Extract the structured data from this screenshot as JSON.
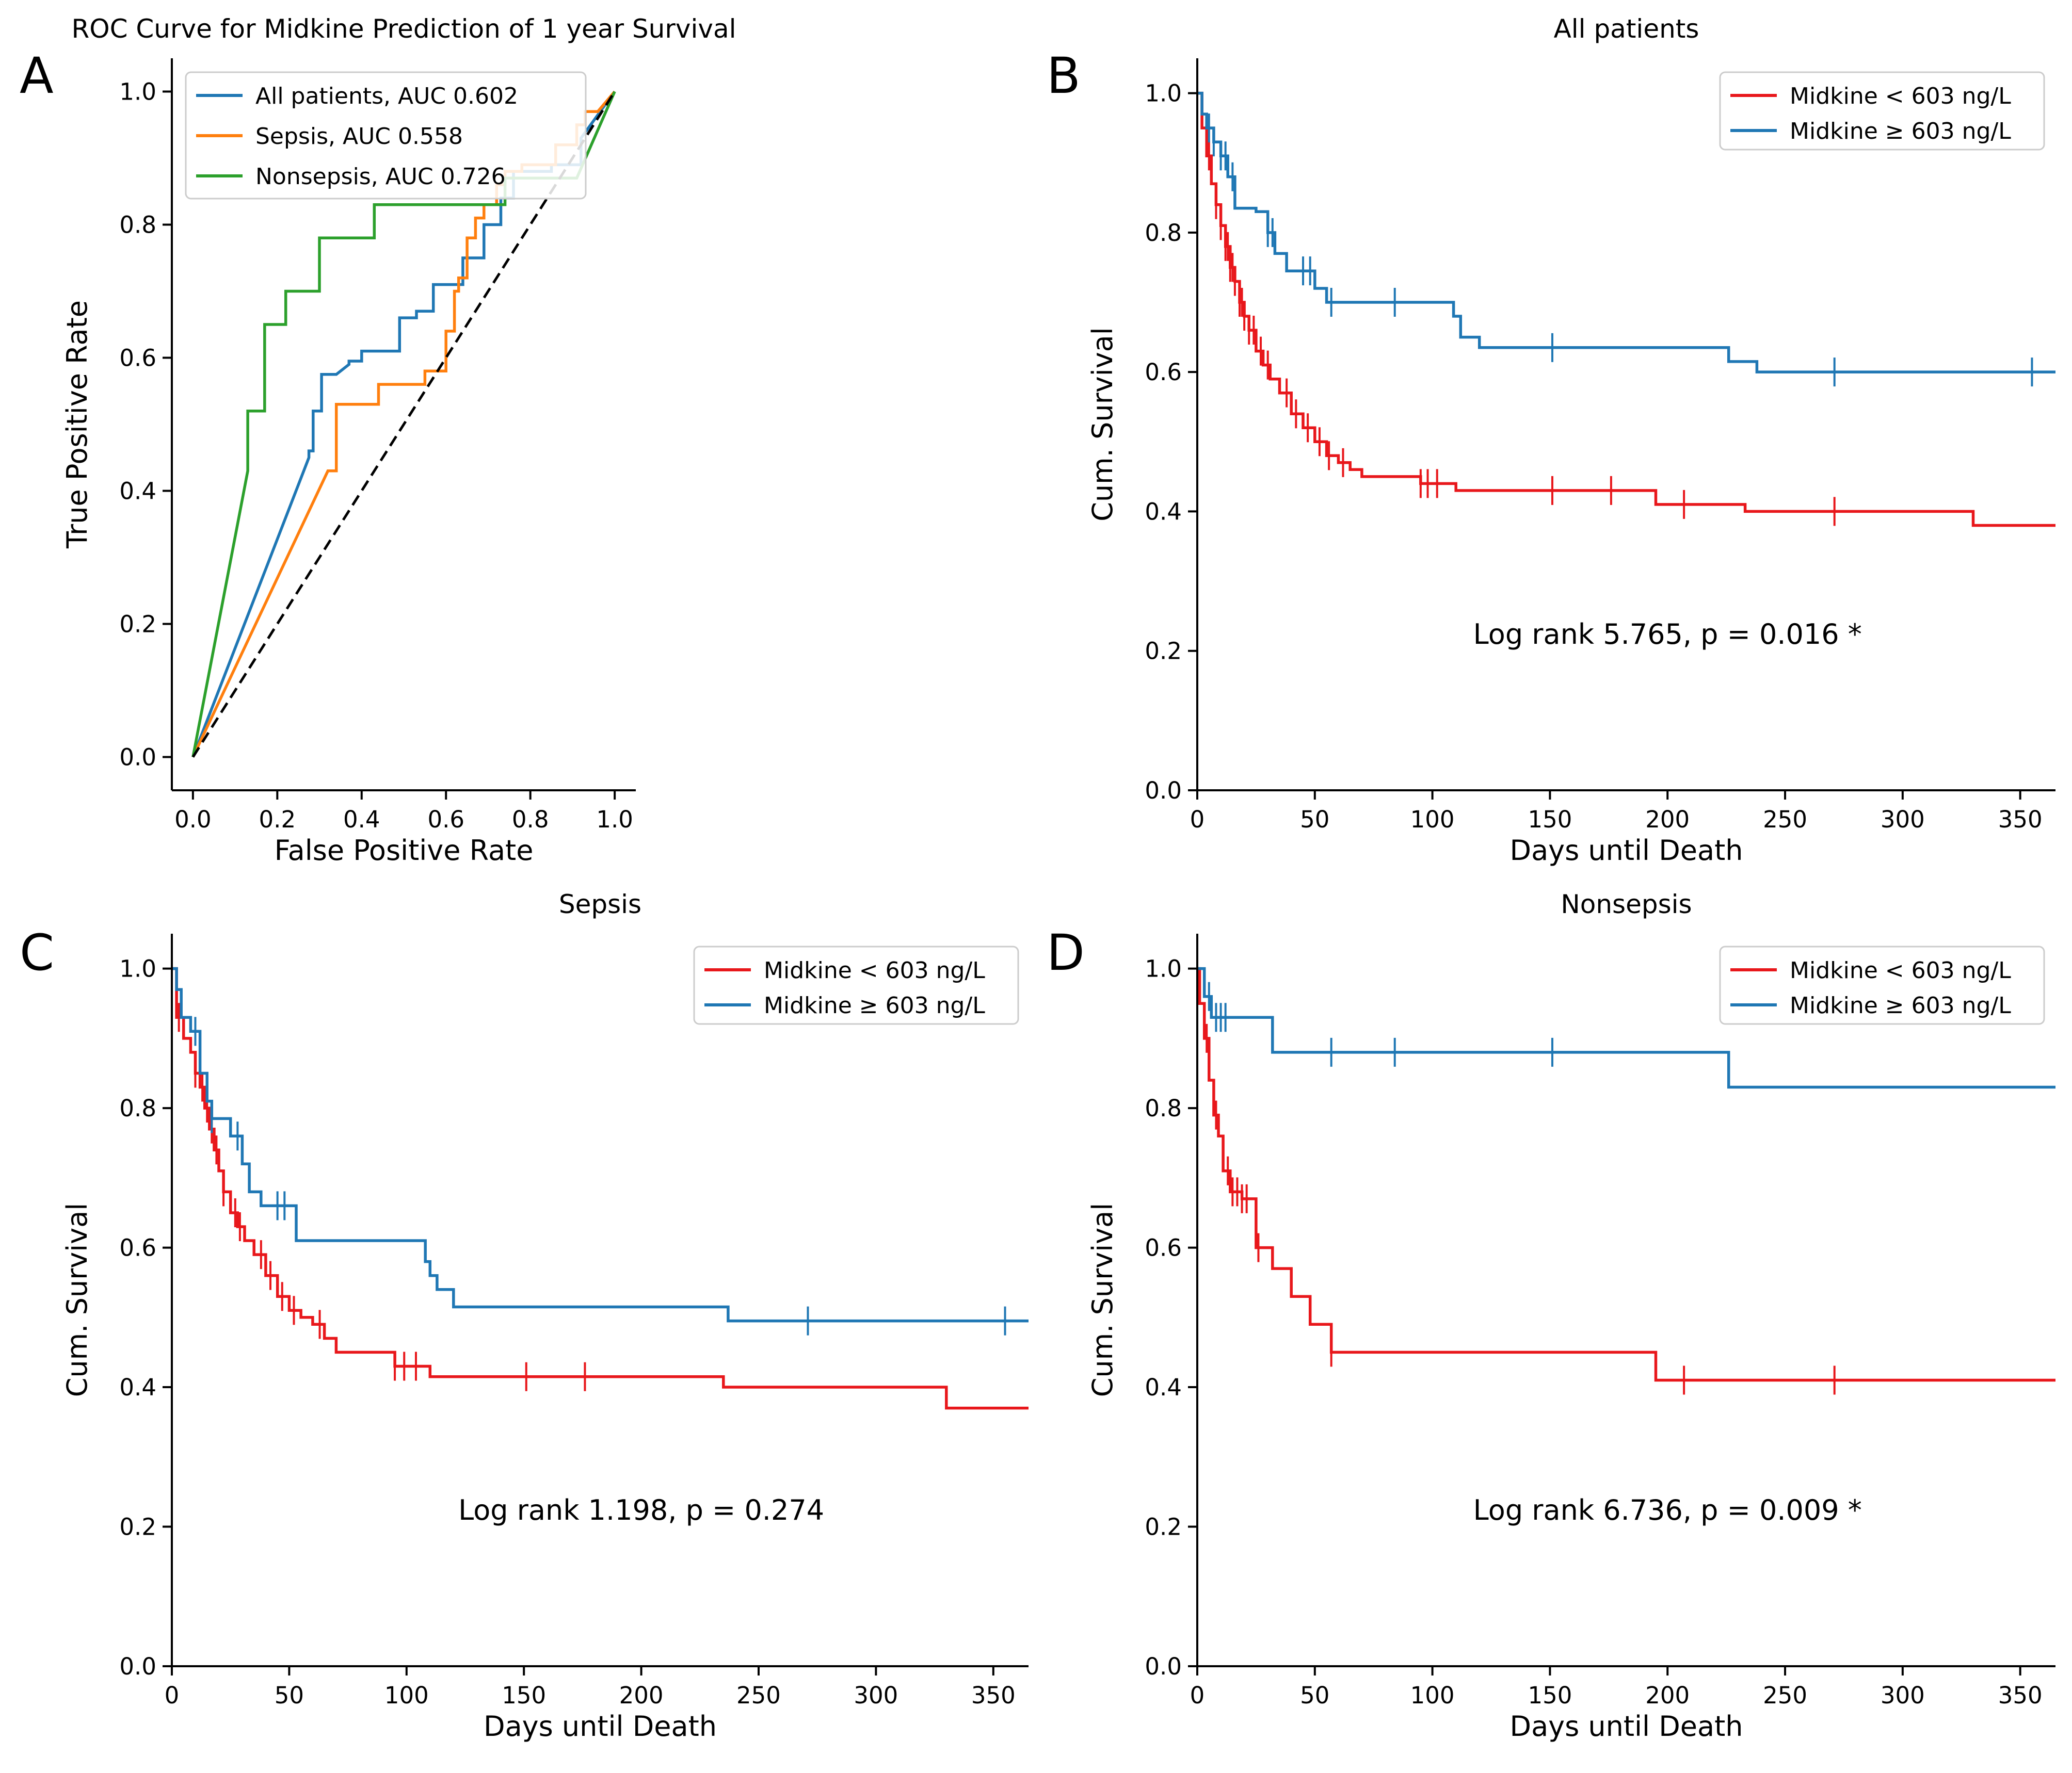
{
  "chart_data": [
    {
      "panel": "A",
      "type": "line",
      "title": "ROC Curve for Midkine Prediction of 1 year Survival",
      "xlabel": "False Positive Rate",
      "ylabel": "True Positive Rate",
      "xlim": [
        -0.05,
        1.05
      ],
      "ylim": [
        -0.05,
        1.05
      ],
      "xticks": [
        0.0,
        0.2,
        0.4,
        0.6,
        0.8,
        1.0
      ],
      "yticks": [
        0.0,
        0.2,
        0.4,
        0.6,
        0.8,
        1.0
      ],
      "tick_decimals": 1,
      "legend_position": "top-left",
      "series": [
        {
          "name": "All patients, AUC 0.602",
          "color": "#1f77b4",
          "x": [
            0,
            0.275,
            0.275,
            0.285,
            0.285,
            0.305,
            0.305,
            0.34,
            0.37,
            0.37,
            0.4,
            0.4,
            0.49,
            0.49,
            0.53,
            0.53,
            0.57,
            0.57,
            0.64,
            0.64,
            0.69,
            0.69,
            0.73,
            0.73,
            0.76,
            0.76,
            0.85,
            0.85,
            0.92,
            0.92,
            1.0
          ],
          "y": [
            0,
            0.45,
            0.46,
            0.46,
            0.52,
            0.52,
            0.575,
            0.575,
            0.59,
            0.595,
            0.595,
            0.61,
            0.61,
            0.66,
            0.66,
            0.67,
            0.67,
            0.71,
            0.71,
            0.75,
            0.75,
            0.8,
            0.8,
            0.84,
            0.84,
            0.88,
            0.88,
            0.89,
            0.89,
            0.93,
            1.0
          ]
        },
        {
          "name": "Sepsis, AUC 0.558",
          "color": "#ff7f0e",
          "x": [
            0,
            0.32,
            0.34,
            0.34,
            0.44,
            0.44,
            0.55,
            0.55,
            0.6,
            0.6,
            0.62,
            0.62,
            0.63,
            0.63,
            0.65,
            0.65,
            0.67,
            0.67,
            0.69,
            0.69,
            0.72,
            0.72,
            0.74,
            0.74,
            0.78,
            0.78,
            0.86,
            0.86,
            0.91,
            0.91,
            0.93,
            0.93,
            0.96,
            1.0
          ],
          "y": [
            0,
            0.43,
            0.43,
            0.53,
            0.53,
            0.56,
            0.56,
            0.58,
            0.58,
            0.64,
            0.64,
            0.7,
            0.7,
            0.72,
            0.72,
            0.78,
            0.78,
            0.81,
            0.81,
            0.83,
            0.83,
            0.86,
            0.86,
            0.88,
            0.88,
            0.89,
            0.89,
            0.92,
            0.92,
            0.95,
            0.95,
            0.97,
            0.97,
            1.0
          ]
        },
        {
          "name": "Nonsepsis, AUC 0.726",
          "color": "#2ca02c",
          "x": [
            0,
            0.13,
            0.13,
            0.17,
            0.17,
            0.22,
            0.22,
            0.3,
            0.3,
            0.43,
            0.43,
            0.74,
            0.74,
            0.91,
            1.0
          ],
          "y": [
            0,
            0.43,
            0.52,
            0.52,
            0.65,
            0.65,
            0.7,
            0.7,
            0.78,
            0.78,
            0.83,
            0.83,
            0.87,
            0.87,
            1.0
          ]
        },
        {
          "name": "chance",
          "color": "#000000",
          "dashed": true,
          "x": [
            0,
            1
          ],
          "y": [
            0,
            1
          ]
        }
      ]
    },
    {
      "panel": "B",
      "type": "line",
      "title": "All patients",
      "xlabel": "Days until Death",
      "ylabel": "Cum. Survival",
      "xlim": [
        0,
        365
      ],
      "ylim": [
        0,
        1.05
      ],
      "xticks": [
        0,
        50,
        100,
        150,
        200,
        250,
        300,
        350
      ],
      "yticks": [
        0.0,
        0.2,
        0.4,
        0.6,
        0.8,
        1.0
      ],
      "tick_decimals": 1,
      "legend_position": "top-right",
      "annotation": "Log rank 5.765, p = 0.016 *",
      "annotation_at": [
        200,
        0.21
      ],
      "series": [
        {
          "name": "Midkine < 603 ng/L",
          "color": "#e8171b",
          "x": [
            0,
            2,
            4,
            6,
            8,
            10,
            12,
            14,
            16,
            18,
            20,
            22,
            25,
            28,
            31,
            35,
            40,
            45,
            50,
            55,
            60,
            65,
            70,
            95,
            110,
            195,
            233,
            330,
            365
          ],
          "y": [
            1.0,
            0.95,
            0.91,
            0.87,
            0.84,
            0.81,
            0.78,
            0.75,
            0.73,
            0.7,
            0.68,
            0.66,
            0.63,
            0.61,
            0.59,
            0.57,
            0.54,
            0.52,
            0.5,
            0.48,
            0.47,
            0.46,
            0.45,
            0.44,
            0.43,
            0.41,
            0.4,
            0.38,
            0.38
          ],
          "censor_x": [
            5,
            8,
            10,
            12,
            13,
            14,
            15,
            16,
            18,
            19,
            20,
            22,
            24,
            27,
            30,
            38,
            42,
            47,
            52,
            56,
            62,
            95,
            98,
            102,
            151,
            176,
            207,
            271
          ]
        },
        {
          "name": "Midkine ≥ 603 ng/L",
          "color": "#1f77b4",
          "x": [
            0,
            2,
            4,
            7,
            10,
            13,
            16,
            25,
            30,
            33,
            38,
            50,
            55,
            107,
            109,
            112,
            120,
            226,
            238,
            365
          ],
          "y": [
            1.0,
            0.97,
            0.95,
            0.93,
            0.91,
            0.88,
            0.835,
            0.83,
            0.8,
            0.77,
            0.745,
            0.72,
            0.7,
            0.7,
            0.68,
            0.65,
            0.635,
            0.615,
            0.6,
            0.6
          ],
          "censor_x": [
            5,
            7,
            10,
            12,
            15,
            30,
            32,
            45,
            48,
            57,
            84,
            151,
            271,
            355
          ]
        }
      ]
    },
    {
      "panel": "C",
      "type": "line",
      "title": "Sepsis",
      "xlabel": "Days until Death",
      "ylabel": "Cum. Survival",
      "xlim": [
        0,
        365
      ],
      "ylim": [
        0,
        1.05
      ],
      "xticks": [
        0,
        50,
        100,
        150,
        200,
        250,
        300,
        350
      ],
      "yticks": [
        0.0,
        0.2,
        0.4,
        0.6,
        0.8,
        1.0
      ],
      "tick_decimals": 1,
      "legend_position": "top-right",
      "annotation": "Log rank 1.198, p = 0.274",
      "annotation_at": [
        200,
        0.21
      ],
      "series": [
        {
          "name": "Midkine < 603 ng/L",
          "color": "#e8171b",
          "x": [
            0,
            2,
            5,
            8,
            10,
            12,
            14,
            16,
            18,
            20,
            22,
            25,
            28,
            31,
            35,
            40,
            45,
            50,
            55,
            60,
            65,
            70,
            95,
            110,
            235,
            330,
            365
          ],
          "y": [
            1.0,
            0.93,
            0.9,
            0.88,
            0.85,
            0.83,
            0.8,
            0.77,
            0.74,
            0.71,
            0.68,
            0.65,
            0.63,
            0.61,
            0.59,
            0.56,
            0.53,
            0.51,
            0.5,
            0.49,
            0.47,
            0.45,
            0.43,
            0.415,
            0.4,
            0.37,
            0.37
          ],
          "censor_x": [
            3,
            10,
            13,
            15,
            17,
            19,
            22,
            27,
            29,
            38,
            42,
            47,
            52,
            63,
            95,
            99,
            104,
            151,
            176
          ]
        },
        {
          "name": "Midkine ≥ 603 ng/L",
          "color": "#1f77b4",
          "x": [
            0,
            2,
            4,
            8,
            12,
            15,
            17,
            25,
            30,
            33,
            38,
            53,
            108,
            110,
            113,
            120,
            237,
            365
          ],
          "y": [
            1.0,
            0.97,
            0.93,
            0.91,
            0.85,
            0.81,
            0.785,
            0.76,
            0.72,
            0.68,
            0.66,
            0.61,
            0.58,
            0.56,
            0.54,
            0.515,
            0.495,
            0.495
          ],
          "censor_x": [
            10,
            17,
            28,
            45,
            48,
            271,
            355
          ]
        }
      ]
    },
    {
      "panel": "D",
      "type": "line",
      "title": "Nonsepsis",
      "xlabel": "Days until Death",
      "ylabel": "Cum. Survival",
      "xlim": [
        0,
        365
      ],
      "ylim": [
        0,
        1.05
      ],
      "xticks": [
        0,
        50,
        100,
        150,
        200,
        250,
        300,
        350
      ],
      "yticks": [
        0.0,
        0.2,
        0.4,
        0.6,
        0.8,
        1.0
      ],
      "tick_decimals": 1,
      "legend_position": "top-right",
      "annotation": "Log rank 6.736, p = 0.009 *",
      "annotation_at": [
        200,
        0.21
      ],
      "series": [
        {
          "name": "Midkine < 603 ng/L",
          "color": "#e8171b",
          "x": [
            0,
            1,
            3,
            5,
            7,
            9,
            11,
            14,
            19,
            25,
            32,
            40,
            48,
            57,
            195,
            365
          ],
          "y": [
            1.0,
            0.95,
            0.9,
            0.84,
            0.79,
            0.76,
            0.71,
            0.68,
            0.67,
            0.6,
            0.57,
            0.53,
            0.49,
            0.45,
            0.41,
            0.41
          ],
          "censor_x": [
            4,
            8,
            13,
            15,
            17,
            19,
            21,
            26,
            57,
            207,
            271
          ]
        },
        {
          "name": "Midkine ≥ 603 ng/L",
          "color": "#1f77b4",
          "x": [
            0,
            3,
            6,
            32,
            226,
            365
          ],
          "y": [
            1.0,
            0.96,
            0.93,
            0.88,
            0.83,
            0.83
          ],
          "censor_x": [
            5,
            8,
            10,
            12,
            57,
            84,
            151
          ]
        }
      ]
    }
  ]
}
